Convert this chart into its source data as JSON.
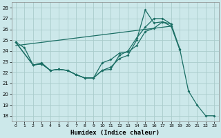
{
  "title": "",
  "xlabel": "Humidex (Indice chaleur)",
  "bg_color": "#cce8ea",
  "grid_color": "#aacccc",
  "line_color": "#1a6e64",
  "xlim": [
    -0.5,
    23.5
  ],
  "ylim": [
    17.5,
    28.5
  ],
  "xticks": [
    0,
    1,
    2,
    3,
    4,
    5,
    6,
    7,
    8,
    9,
    10,
    11,
    12,
    13,
    14,
    15,
    16,
    17,
    18,
    19,
    20,
    21,
    22,
    23
  ],
  "yticks": [
    18,
    19,
    20,
    21,
    22,
    23,
    24,
    25,
    26,
    27,
    28
  ],
  "line1_x": [
    0,
    1,
    2,
    3,
    4,
    5,
    6,
    7,
    8,
    9,
    10,
    11,
    12,
    13,
    14,
    15,
    16,
    17,
    18,
    19
  ],
  "line1_y": [
    24.8,
    24.3,
    22.7,
    22.8,
    22.2,
    22.3,
    22.2,
    21.8,
    21.5,
    21.5,
    22.2,
    22.5,
    23.3,
    23.6,
    25.0,
    27.8,
    26.6,
    26.7,
    26.3,
    24.1
  ],
  "line2_x": [
    0,
    2,
    3,
    4,
    5,
    6,
    7,
    8,
    9,
    10,
    11,
    12,
    13,
    14,
    15,
    16,
    17,
    18,
    19,
    20,
    21,
    22,
    23
  ],
  "line2_y": [
    24.8,
    22.7,
    22.9,
    22.2,
    22.3,
    22.2,
    21.8,
    21.5,
    21.5,
    22.2,
    22.3,
    23.6,
    24.0,
    25.2,
    26.2,
    27.0,
    27.0,
    26.5,
    24.2,
    20.3,
    19.0,
    18.0,
    18.0
  ],
  "line3_x": [
    0,
    2,
    3,
    4,
    5,
    6,
    7,
    8,
    9,
    10,
    11,
    12,
    13,
    14,
    15,
    16,
    17,
    18
  ],
  "line3_y": [
    24.8,
    22.7,
    22.8,
    22.2,
    22.3,
    22.2,
    21.8,
    21.5,
    21.5,
    22.9,
    23.2,
    23.8,
    23.9,
    24.5,
    25.8,
    26.1,
    26.7,
    26.5
  ],
  "trend_x": [
    0,
    18
  ],
  "trend_y": [
    24.5,
    26.3
  ]
}
